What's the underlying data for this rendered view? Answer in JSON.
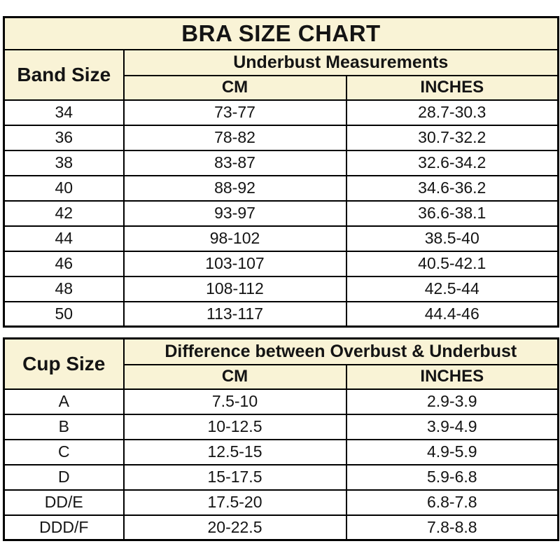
{
  "title": "BRA SIZE CHART",
  "colors": {
    "header_bg": "#F9F3D6",
    "border": "#000000",
    "text": "#141414",
    "row_bg": "#FFFFFF"
  },
  "chart_data": [
    {
      "type": "table",
      "title": "BRA SIZE CHART",
      "row_header": "Band Size",
      "group_header": "Underbust Measurements",
      "columns": [
        "CM",
        "INCHES"
      ],
      "rows": [
        [
          "34",
          "73-77",
          "28.7-30.3"
        ],
        [
          "36",
          "78-82",
          "30.7-32.2"
        ],
        [
          "38",
          "83-87",
          "32.6-34.2"
        ],
        [
          "40",
          "88-92",
          "34.6-36.2"
        ],
        [
          "42",
          "93-97",
          "36.6-38.1"
        ],
        [
          "44",
          "98-102",
          "38.5-40"
        ],
        [
          "46",
          "103-107",
          "40.5-42.1"
        ],
        [
          "48",
          "108-112",
          "42.5-44"
        ],
        [
          "50",
          "113-117",
          "44.4-46"
        ]
      ]
    },
    {
      "type": "table",
      "row_header": "Cup Size",
      "group_header": "Difference between Overbust & Underbust",
      "columns": [
        "CM",
        "INCHES"
      ],
      "rows": [
        [
          "A",
          "7.5-10",
          "2.9-3.9"
        ],
        [
          "B",
          "10-12.5",
          "3.9-4.9"
        ],
        [
          "C",
          "12.5-15",
          "4.9-5.9"
        ],
        [
          "D",
          "15-17.5",
          "5.9-6.8"
        ],
        [
          "DD/E",
          "17.5-20",
          "6.8-7.8"
        ],
        [
          "DDD/F",
          "20-22.5",
          "7.8-8.8"
        ]
      ]
    }
  ]
}
